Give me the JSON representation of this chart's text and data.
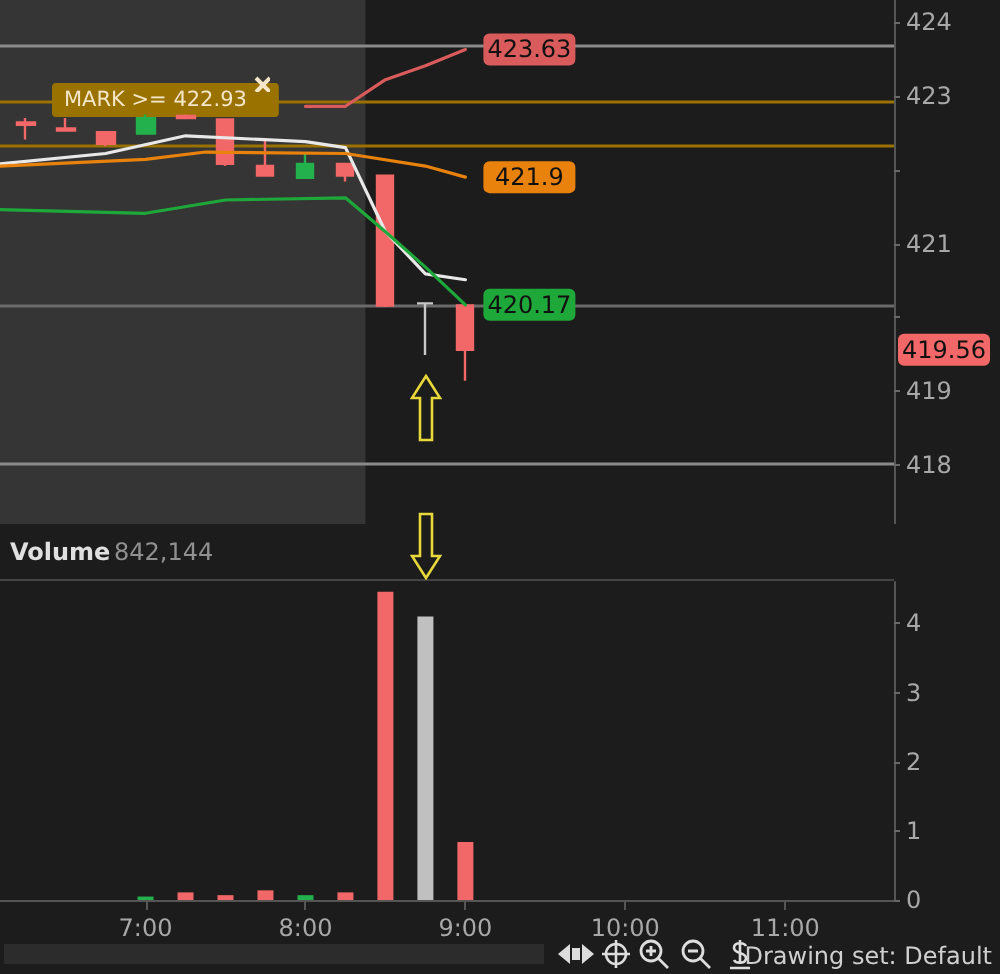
{
  "chart_data": [
    {
      "type": "candlestick",
      "tick_labels": "y",
      "grid": false,
      "x": [
        6.25,
        6.5,
        6.75,
        7.0,
        7.25,
        7.5,
        7.75,
        8.0,
        8.25,
        8.5,
        8.75,
        9.0
      ],
      "ohlc": [
        [
          422.64,
          422.7,
          422.41,
          422.61
        ],
        [
          422.56,
          422.7,
          422.53,
          422.53
        ],
        [
          422.51,
          422.51,
          422.32,
          422.35
        ],
        [
          422.49,
          422.75,
          422.49,
          422.7
        ],
        [
          422.73,
          422.75,
          422.7,
          422.7
        ],
        [
          422.68,
          422.68,
          422.05,
          422.08
        ],
        [
          422.05,
          422.43,
          421.92,
          421.92
        ],
        [
          421.89,
          422.24,
          421.89,
          422.08
        ],
        [
          422.08,
          422.08,
          421.84,
          421.92
        ],
        [
          421.92,
          421.92,
          420.14,
          420.16
        ],
        [
          420.19,
          420.19,
          419.49,
          420.19
        ],
        [
          420.16,
          420.16,
          419.14,
          419.56
        ]
      ],
      "colors": [
        "#f26767",
        "#f26767",
        "#f26767",
        "#22b14c",
        "#f26767",
        "#f26767",
        "#f26767",
        "#22b14c",
        "#f26767",
        "#f26767",
        "#c8c8c8",
        "#f26767"
      ],
      "value_labels": [
        null,
        null,
        null,
        null,
        null,
        null,
        null,
        null,
        null,
        null,
        null,
        "419.56"
      ],
      "series": [
        {
          "type": "line",
          "color": "#d95b5b",
          "x": [
            8.0,
            8.25,
            8.5,
            8.75,
            9.0
          ],
          "values": [
            422.86,
            422.86,
            423.22,
            423.41,
            423.63
          ],
          "value_labels": [
            null,
            null,
            null,
            null,
            "423.63"
          ]
        },
        {
          "type": "line",
          "color": "#e8e8e8",
          "x": [
            6.09,
            6.75,
            7.25,
            8.0,
            8.25,
            8.5,
            8.75,
            9.0
          ],
          "values": [
            422.08,
            422.22,
            422.46,
            422.38,
            422.3,
            421.16,
            420.59,
            420.51
          ]
        },
        {
          "type": "line",
          "color": "#e8820c",
          "x": [
            6.09,
            7.0,
            7.375,
            8.25,
            8.34,
            8.75,
            9.0
          ],
          "values": [
            422.05,
            422.14,
            422.24,
            422.22,
            422.19,
            422.05,
            421.9
          ],
          "value_labels": [
            null,
            null,
            null,
            null,
            null,
            null,
            "421.9"
          ]
        },
        {
          "type": "line",
          "color": "#1fa83a",
          "x": [
            6.09,
            7.0,
            7.5,
            8.25,
            8.5,
            8.75,
            9.0
          ],
          "values": [
            421.46,
            421.41,
            421.59,
            421.62,
            421.16,
            420.68,
            420.17
          ],
          "value_labels": [
            null,
            null,
            null,
            null,
            null,
            null,
            "420.17"
          ]
        }
      ],
      "ref_lines": [
        {
          "axis": "y",
          "value": 422.93,
          "label": "MARK >= 422.93",
          "color": "#9a7200"
        },
        {
          "axis": "y",
          "value": 422.32,
          "color": "#9a7200"
        },
        {
          "axis": "y",
          "value": 423.68,
          "color": "#8a8a8a"
        },
        {
          "axis": "y",
          "value": 420.17,
          "color": "#6a6a6a"
        },
        {
          "axis": "y",
          "value": 418.03,
          "color": "#8a8a8a"
        }
      ],
      "bands": [
        {
          "axis": "x",
          "from": 6.09,
          "to": 8.375,
          "color": "#353535"
        }
      ],
      "xlim": [
        6.09,
        11.68
      ],
      "ylim": [
        417.2,
        424.3
      ],
      "yticks": [
        418,
        419,
        {
          "value": 420,
          "label": null
        },
        421,
        {
          "value": 422,
          "label": null
        },
        423,
        424
      ]
    },
    {
      "type": "bar",
      "grid": false,
      "x": [
        7.0,
        7.25,
        7.5,
        7.75,
        8.0,
        8.25,
        8.5,
        8.75,
        9.0
      ],
      "values": [
        0.05,
        0.11,
        0.07,
        0.14,
        0.07,
        0.11,
        4.46,
        4.1,
        0.84
      ],
      "colors": [
        "#22b14c",
        "#f26767",
        "#f26767",
        "#f26767",
        "#22b14c",
        "#f26767",
        "#f26767",
        "#c0c0c0",
        "#f26767"
      ],
      "xlim": [
        6.09,
        11.68
      ],
      "xticks": [
        {
          "value": 7,
          "label": "7:00"
        },
        {
          "value": 8,
          "label": "8:00"
        },
        {
          "value": 9,
          "label": "9:00"
        },
        {
          "value": 10,
          "label": "10:00"
        },
        {
          "value": 11,
          "label": "11:00"
        }
      ],
      "ylim": [
        0,
        4.6
      ],
      "yticks": [
        0,
        1,
        2,
        3,
        4
      ],
      "annotations": [
        "Volume",
        "842,144",
        "Drawing set: Default"
      ]
    }
  ]
}
